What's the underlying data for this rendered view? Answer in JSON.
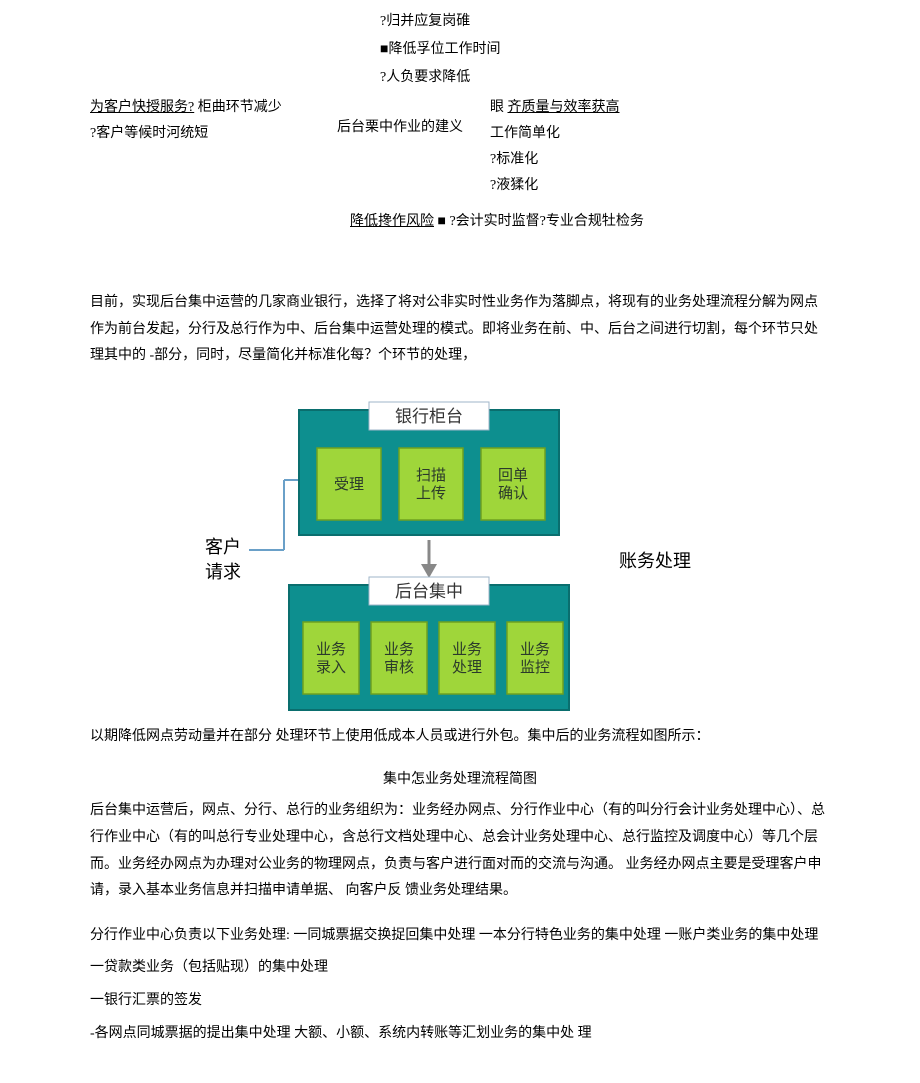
{
  "top": {
    "l1": "?归并应复岗碓",
    "l2": "■降低孚位工作时间",
    "l3": "?人负要求降低"
  },
  "grid": {
    "left": {
      "a": "为客户快授服务?",
      "a2": "柜曲环节减少",
      "b": "?客户等候时河统短"
    },
    "mid": "后台栗中作业的建义",
    "right": {
      "a": "眼",
      "a2": "齐质量与效率获高",
      "b": "工作简单化",
      "c": "?标准化",
      "d": "?液猱化"
    },
    "risk": {
      "a": "降低搀作风险",
      "b": "■  ?会计实时监督?专业合规牡检务"
    }
  },
  "para1": "目前，实现后台集中运营的几家商业银行，选择了将对公非实时性业务作为落脚点，将现有的业务处理流程分解为网点作为前台发起，分行及总行作为中、后台集中运营处理的模式。即将业务在前、中、后台之间进行切割，每个环节只处理其中的 -部分，同时，尽量简化并标准化每？个环节的处理，",
  "diagram": {
    "left_label": "客户\n请求",
    "right_label": "账务处理",
    "box_top_title": "银行柜台",
    "box_bottom_title": "后台集中",
    "top_cells": [
      "受理",
      "扫描\n上传",
      "回单\n确认"
    ],
    "bottom_cells": [
      "业务\n录入",
      "业务\n审核",
      "业务\n处理",
      "业务\n监控"
    ],
    "colors": {
      "panel_bg": "#0d8f8f",
      "panel_border": "#0a6e6e",
      "cell_bg": "#9fd63a",
      "cell_border": "#6ea020",
      "title_bg": "#ffffff",
      "title_border": "#9fb6c9",
      "text": "#2b3a2b",
      "arrow": "#888888",
      "connector": "#6aa0c8"
    }
  },
  "after_diagram": "以期降低网点劳动量并在部分  处理环节上使用低成本人员或进行外包。集中后的业务流程如图所示：",
  "caption": "集中怎业务处理流程简图",
  "para2": "后台集中运营后，网点、分行、总行的业务组织为：业务经办网点、分行作业中心（有的叫分行会计业务处理中心）、总行作业中心（有的叫总行专业处理中心，含总行文档处理中心、总会计业务处理中心、总行监控及调度中心）等几个层而。业务经办网点为办理对公业务的物理网点，负责与客户进行面对而的交流与沟通。 业务经办网点主要是受理客户申请，录入基本业务信息并扫描申请单据、 向客户反 馈业务处理结果。",
  "list": {
    "intro": "分行作业中心负责以下业务处理: 一同城票据交换捉回集中处理 一本分行特色业务的集中处理 一账户类业务的集中处理",
    "items": [
      "一贷款类业务（包括贴现）的集中处理",
      "一银行汇票的签发",
      "-各网点同城票据的提出集中处理  大额、小额、系统内转账等汇划业务的集中处 理"
    ]
  }
}
